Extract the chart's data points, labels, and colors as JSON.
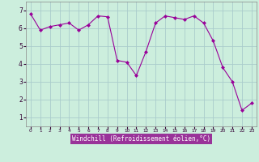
{
  "x": [
    0,
    1,
    2,
    3,
    4,
    5,
    6,
    7,
    8,
    9,
    10,
    11,
    12,
    13,
    14,
    15,
    16,
    17,
    18,
    19,
    20,
    21,
    22,
    23
  ],
  "y": [
    6.8,
    5.9,
    6.1,
    6.2,
    6.3,
    5.9,
    6.2,
    6.7,
    6.65,
    4.2,
    4.1,
    3.35,
    4.7,
    6.3,
    6.7,
    6.6,
    6.5,
    6.7,
    6.3,
    5.3,
    3.8,
    3.0,
    1.4,
    1.8
  ],
  "line_color": "#990099",
  "marker": "D",
  "marker_size": 2.0,
  "bg_color": "#cceedd",
  "grid_color": "#aacccc",
  "xlabel": "Windchill (Refroidissement éolien,°C)",
  "xlabel_color": "#ffffff",
  "xlabel_bg": "#993399",
  "ylabel_ticks": [
    1,
    2,
    3,
    4,
    5,
    6,
    7
  ],
  "xtick_labels": [
    "0",
    "1",
    "2",
    "3",
    "4",
    "5",
    "6",
    "7",
    "8",
    "9",
    "10",
    "11",
    "12",
    "13",
    "14",
    "15",
    "16",
    "17",
    "18",
    "19",
    "20",
    "21",
    "22",
    "23"
  ],
  "ylim": [
    0.5,
    7.5
  ],
  "xlim": [
    -0.5,
    23.5
  ]
}
